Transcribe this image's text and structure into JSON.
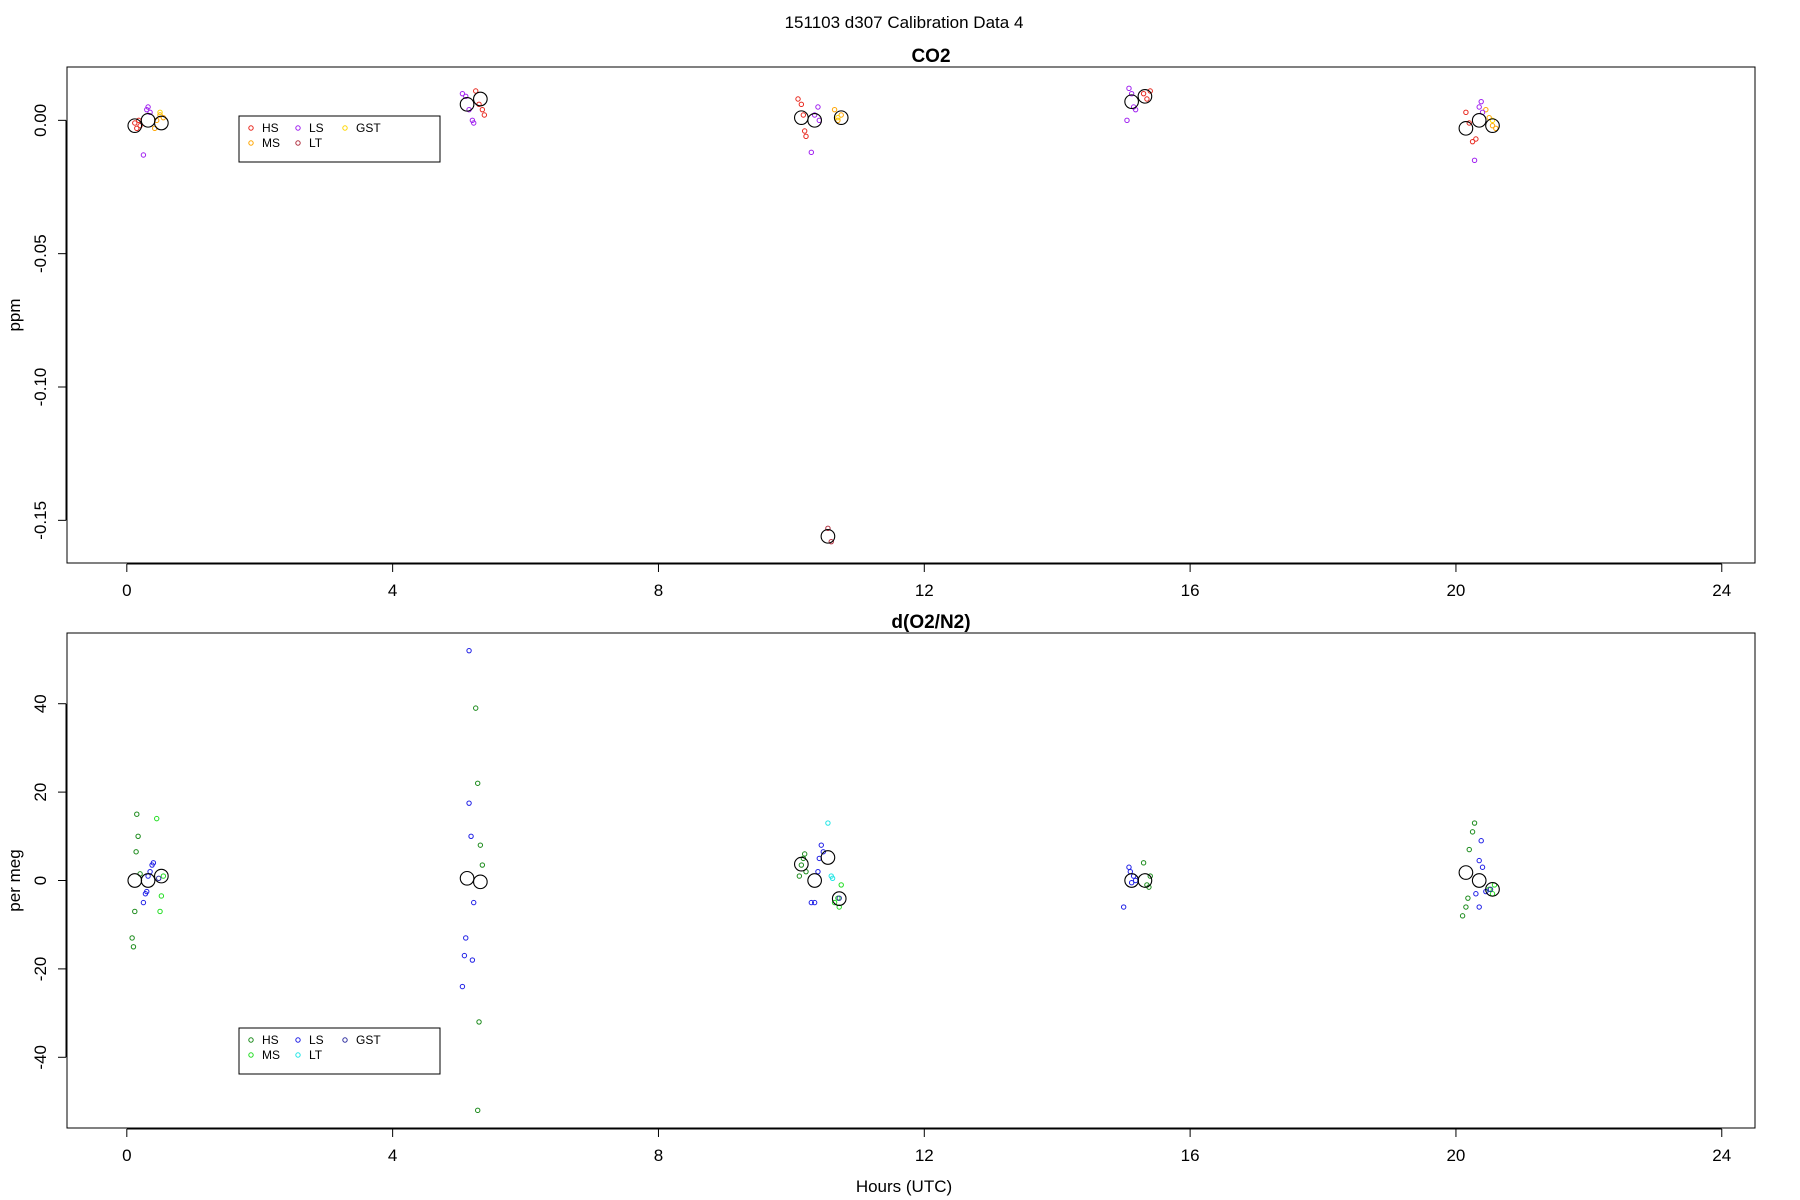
{
  "suptitle": "151103   d307   Calibration Data 4",
  "xlabel": "Hours (UTC)",
  "x_ticks": [
    0,
    4,
    8,
    12,
    16,
    20,
    24
  ],
  "chart_data": [
    {
      "type": "scatter",
      "title": "CO2",
      "xlabel": "",
      "ylabel": "ppm",
      "xlim": [
        -0.9,
        24.5
      ],
      "ylim": [
        -0.166,
        0.02
      ],
      "y_ticks": [
        0.0,
        -0.05,
        -0.1,
        -0.15
      ],
      "y_tick_labels": [
        "0.00",
        "-0.05",
        "-0.10",
        "-0.15"
      ],
      "legend": {
        "placement": "top-left",
        "entries": [
          {
            "name": "HS",
            "color": "#e8281e"
          },
          {
            "name": "LS",
            "color": "#a020f0"
          },
          {
            "name": "GST",
            "color": "#ffd700"
          },
          {
            "name": "MS",
            "color": "#ffa500"
          },
          {
            "name": "LT",
            "color": "#b03040"
          }
        ]
      },
      "series": [
        {
          "name": "HS",
          "color": "#e8281e",
          "points": [
            [
              0.12,
              -0.001
            ],
            [
              0.15,
              -0.003
            ],
            [
              0.18,
              0.0
            ],
            [
              0.2,
              -0.002
            ],
            [
              5.25,
              0.011
            ],
            [
              5.3,
              0.006
            ],
            [
              5.35,
              0.004
            ],
            [
              5.38,
              0.002
            ],
            [
              10.1,
              0.008
            ],
            [
              10.15,
              0.006
            ],
            [
              10.2,
              -0.004
            ],
            [
              10.22,
              -0.006
            ],
            [
              10.18,
              0.002
            ],
            [
              15.3,
              0.01
            ],
            [
              15.35,
              0.008
            ],
            [
              15.4,
              0.011
            ],
            [
              20.15,
              0.003
            ],
            [
              20.2,
              -0.001
            ],
            [
              20.25,
              -0.008
            ],
            [
              20.3,
              -0.007
            ]
          ]
        },
        {
          "name": "MS",
          "color": "#ffa500",
          "points": [
            [
              0.42,
              -0.003
            ],
            [
              0.45,
              0.0
            ],
            [
              0.5,
              0.002
            ],
            [
              0.55,
              0.001
            ],
            [
              10.65,
              0.004
            ],
            [
              10.7,
              0.0
            ],
            [
              10.75,
              0.002
            ],
            [
              20.45,
              0.004
            ],
            [
              20.5,
              0.001
            ],
            [
              20.55,
              -0.002
            ],
            [
              20.6,
              -0.003
            ]
          ]
        },
        {
          "name": "LS",
          "color": "#a020f0",
          "points": [
            [
              0.25,
              -0.013
            ],
            [
              0.3,
              0.004
            ],
            [
              0.32,
              0.005
            ],
            [
              0.35,
              0.003
            ],
            [
              5.05,
              0.01
            ],
            [
              5.1,
              0.009
            ],
            [
              5.15,
              0.004
            ],
            [
              5.2,
              0.0
            ],
            [
              5.22,
              -0.001
            ],
            [
              10.3,
              -0.012
            ],
            [
              10.35,
              0.002
            ],
            [
              10.4,
              0.005
            ],
            [
              10.42,
              0.0
            ],
            [
              15.05,
              0.0
            ],
            [
              15.08,
              0.012
            ],
            [
              15.12,
              0.01
            ],
            [
              15.15,
              0.005
            ],
            [
              15.18,
              0.004
            ],
            [
              20.28,
              -0.015
            ],
            [
              20.35,
              0.005
            ],
            [
              20.38,
              0.007
            ],
            [
              20.4,
              0.003
            ]
          ]
        },
        {
          "name": "LT",
          "color": "#b03040",
          "points": [
            [
              10.55,
              -0.153
            ],
            [
              10.6,
              -0.158
            ]
          ]
        },
        {
          "name": "GST",
          "color": "#ffd700",
          "points": [
            [
              0.5,
              0.003
            ],
            [
              10.7,
              0.001
            ],
            [
              20.55,
              0.0
            ]
          ]
        },
        {
          "name": "Mean",
          "color": "#000000",
          "large": true,
          "points": [
            [
              0.12,
              -0.002
            ],
            [
              0.32,
              0.0
            ],
            [
              0.52,
              -0.001
            ],
            [
              5.12,
              0.006
            ],
            [
              5.32,
              0.008
            ],
            [
              10.15,
              0.001
            ],
            [
              10.35,
              0.0
            ],
            [
              10.55,
              -0.156
            ],
            [
              10.75,
              0.001
            ],
            [
              15.12,
              0.007
            ],
            [
              15.32,
              0.009
            ],
            [
              20.15,
              -0.003
            ],
            [
              20.35,
              0.0
            ],
            [
              20.55,
              -0.002
            ]
          ]
        }
      ]
    },
    {
      "type": "scatter",
      "title": "d(O2/N2)",
      "xlabel": "Hours (UTC)",
      "ylabel": "per meg",
      "xlim": [
        -0.9,
        24.5
      ],
      "ylim": [
        -56,
        56
      ],
      "y_ticks": [
        40,
        20,
        0,
        -20,
        -40
      ],
      "y_tick_labels": [
        "40",
        "20",
        "0",
        "-20",
        "-40"
      ],
      "legend": {
        "placement": "bottom-left",
        "entries": [
          {
            "name": "HS",
            "color": "#1a8a1a"
          },
          {
            "name": "LS",
            "color": "#1f1fe6"
          },
          {
            "name": "GST",
            "color": "#3030a0"
          },
          {
            "name": "MS",
            "color": "#22dd22"
          },
          {
            "name": "LT",
            "color": "#22e6e6"
          }
        ]
      },
      "series": [
        {
          "name": "HS",
          "color": "#1a8a1a",
          "points": [
            [
              0.08,
              -13
            ],
            [
              0.1,
              -15
            ],
            [
              0.12,
              -7
            ],
            [
              0.14,
              6.5
            ],
            [
              0.15,
              15
            ],
            [
              0.17,
              10
            ],
            [
              0.2,
              1.5
            ],
            [
              5.25,
              39
            ],
            [
              5.28,
              22
            ],
            [
              5.3,
              -32
            ],
            [
              5.32,
              8
            ],
            [
              5.35,
              3.5
            ],
            [
              5.28,
              -52
            ],
            [
              10.12,
              1
            ],
            [
              10.15,
              3.5
            ],
            [
              10.18,
              5
            ],
            [
              10.2,
              6
            ],
            [
              10.22,
              2
            ],
            [
              15.3,
              4
            ],
            [
              15.35,
              -1
            ],
            [
              15.38,
              -1.5
            ],
            [
              15.4,
              1
            ],
            [
              20.1,
              -8
            ],
            [
              20.15,
              -6
            ],
            [
              20.18,
              -4
            ],
            [
              20.2,
              7
            ],
            [
              20.25,
              11
            ],
            [
              20.28,
              13
            ]
          ]
        },
        {
          "name": "MS",
          "color": "#22dd22",
          "points": [
            [
              0.45,
              14
            ],
            [
              0.5,
              -7
            ],
            [
              0.52,
              -3.5
            ],
            [
              0.55,
              1
            ],
            [
              10.65,
              -5
            ],
            [
              10.7,
              -4
            ],
            [
              10.72,
              -6
            ],
            [
              10.75,
              -1
            ],
            [
              20.5,
              -2
            ],
            [
              20.55,
              -3
            ],
            [
              20.58,
              -1
            ]
          ]
        },
        {
          "name": "LS",
          "color": "#1f1fe6",
          "points": [
            [
              0.25,
              -5
            ],
            [
              0.28,
              -3
            ],
            [
              0.3,
              -2.5
            ],
            [
              0.32,
              1
            ],
            [
              0.35,
              2
            ],
            [
              0.38,
              3.5
            ],
            [
              0.4,
              4
            ],
            [
              5.05,
              -24
            ],
            [
              5.08,
              -17
            ],
            [
              5.1,
              -13
            ],
            [
              5.15,
              17.5
            ],
            [
              5.18,
              10
            ],
            [
              5.2,
              -18
            ],
            [
              5.22,
              -5
            ],
            [
              5.15,
              52
            ],
            [
              10.3,
              -5
            ],
            [
              10.35,
              -5
            ],
            [
              10.4,
              2
            ],
            [
              10.42,
              5
            ],
            [
              10.45,
              8
            ],
            [
              10.48,
              6.5
            ],
            [
              15.0,
              -6
            ],
            [
              15.08,
              3
            ],
            [
              15.1,
              2
            ],
            [
              15.12,
              -0.5
            ],
            [
              15.15,
              1
            ],
            [
              15.18,
              0
            ],
            [
              20.3,
              -3
            ],
            [
              20.35,
              4.5
            ],
            [
              20.38,
              9
            ],
            [
              20.4,
              3
            ],
            [
              20.45,
              -2.5
            ],
            [
              20.35,
              -6
            ]
          ]
        },
        {
          "name": "LT",
          "color": "#22e6e6",
          "points": [
            [
              10.55,
              13
            ],
            [
              10.6,
              1
            ],
            [
              10.62,
              0.5
            ]
          ]
        },
        {
          "name": "GST",
          "color": "#3030a0",
          "points": [
            [
              0.48,
              0.5
            ],
            [
              10.72,
              -4
            ],
            [
              20.52,
              -2
            ]
          ]
        },
        {
          "name": "Mean",
          "color": "#000000",
          "large": true,
          "points": [
            [
              0.12,
              0
            ],
            [
              0.32,
              0
            ],
            [
              0.52,
              1
            ],
            [
              5.12,
              0.5
            ],
            [
              5.32,
              -0.3
            ],
            [
              10.15,
              3.7
            ],
            [
              10.35,
              0
            ],
            [
              10.55,
              5.2
            ],
            [
              10.72,
              -4.1
            ],
            [
              15.12,
              0
            ],
            [
              15.32,
              0
            ],
            [
              20.15,
              1.8
            ],
            [
              20.35,
              0
            ],
            [
              20.55,
              -2
            ]
          ]
        }
      ]
    }
  ]
}
